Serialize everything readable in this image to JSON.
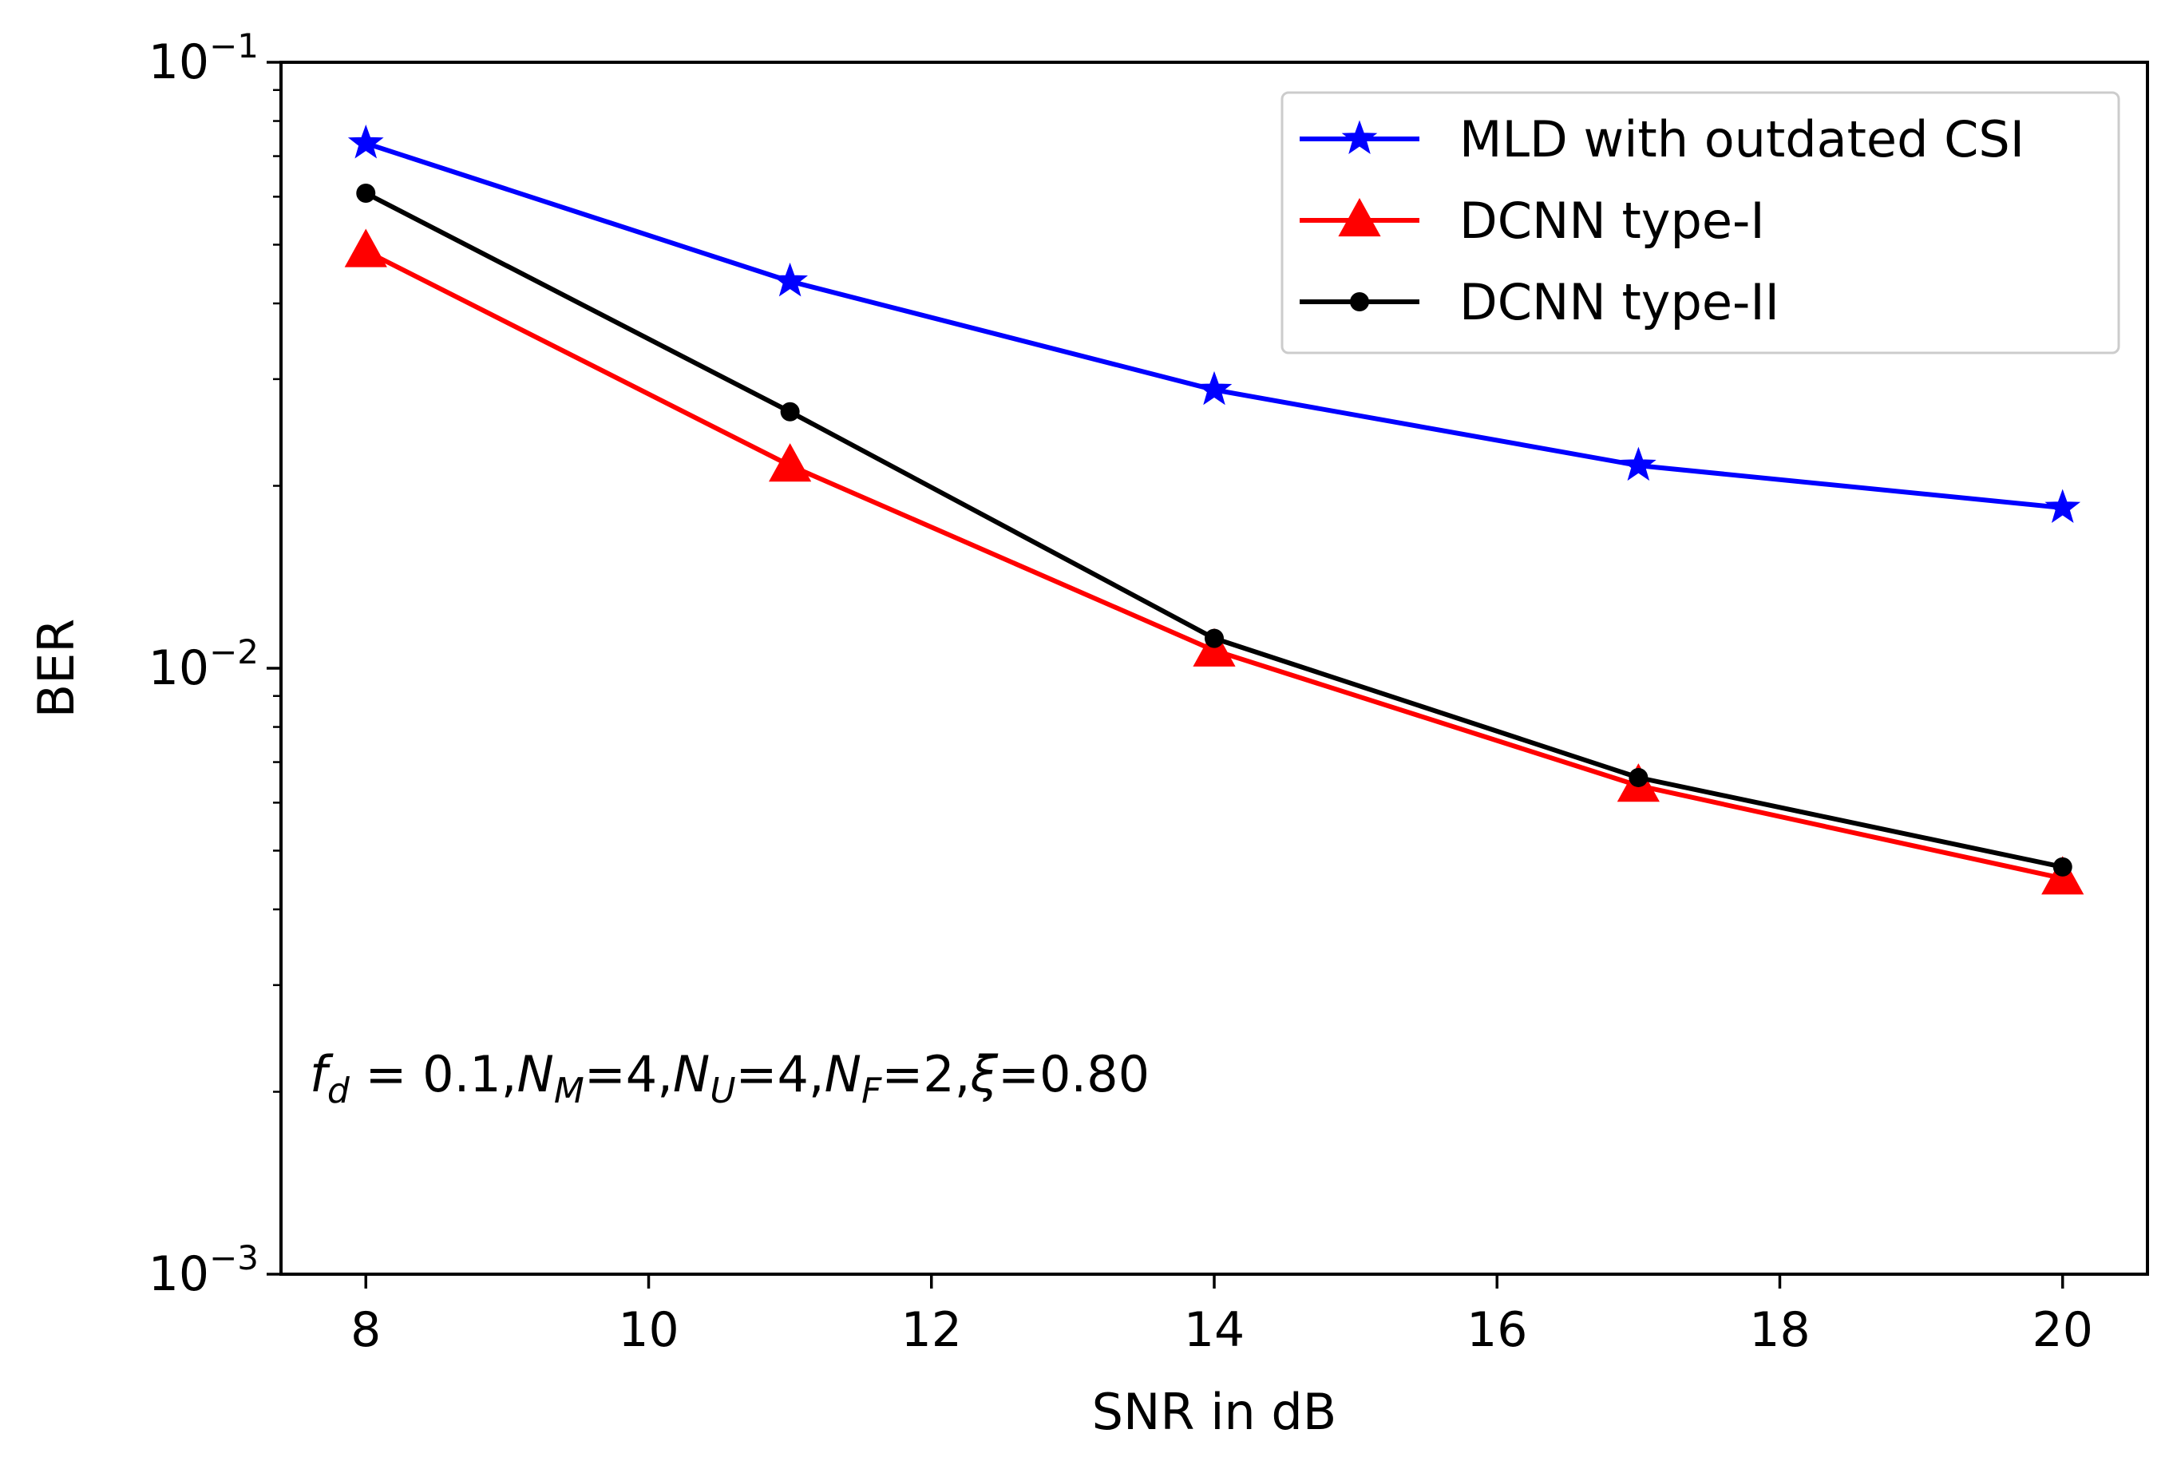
{
  "chart_data": {
    "type": "line",
    "xlabel": "SNR in dB",
    "ylabel": "BER",
    "yscale": "log",
    "xlim": [
      7.4,
      20.6
    ],
    "ylim": [
      0.001,
      0.1
    ],
    "x_ticks": [
      8,
      10,
      12,
      14,
      16,
      18,
      20
    ],
    "y_ticks": [
      {
        "value": 0.1,
        "base": "10",
        "exponent": "−1"
      },
      {
        "value": 0.01,
        "base": "10",
        "exponent": "−2"
      },
      {
        "value": 0.001,
        "base": "10",
        "exponent": "−3"
      }
    ],
    "grid": false,
    "legend_position": "top-right",
    "x": [
      8,
      11,
      14,
      17,
      20
    ],
    "series": [
      {
        "name": "MLD with outdated CSI",
        "color": "#0000ff",
        "marker": "star",
        "values": [
          0.0735,
          0.0435,
          0.0288,
          0.0216,
          0.0184
        ]
      },
      {
        "name": "DCNN type-I",
        "color": "#ff0000",
        "marker": "triangle",
        "values": [
          0.0488,
          0.0216,
          0.0107,
          0.0064,
          0.0045
        ]
      },
      {
        "name": "DCNN type-II",
        "color": "#000000",
        "marker": "dot",
        "values": [
          0.0608,
          0.0265,
          0.0112,
          0.0066,
          0.0047
        ]
      }
    ],
    "annotation": {
      "segments": [
        {
          "text": "f",
          "style": "italic"
        },
        {
          "text": "d",
          "style": "sub-italic"
        },
        {
          "text": " = 0.1,",
          "style": "normal"
        },
        {
          "text": "N",
          "style": "italic"
        },
        {
          "text": "M",
          "style": "sub-italic"
        },
        {
          "text": "=4,",
          "style": "normal"
        },
        {
          "text": "N",
          "style": "italic"
        },
        {
          "text": "U",
          "style": "sub-italic"
        },
        {
          "text": "=4,",
          "style": "normal"
        },
        {
          "text": "N",
          "style": "italic"
        },
        {
          "text": "F",
          "style": "sub-italic"
        },
        {
          "text": "=2,",
          "style": "normal"
        },
        {
          "text": "ξ",
          "style": "italic"
        },
        {
          "text": "=0.80",
          "style": "normal"
        }
      ]
    }
  }
}
